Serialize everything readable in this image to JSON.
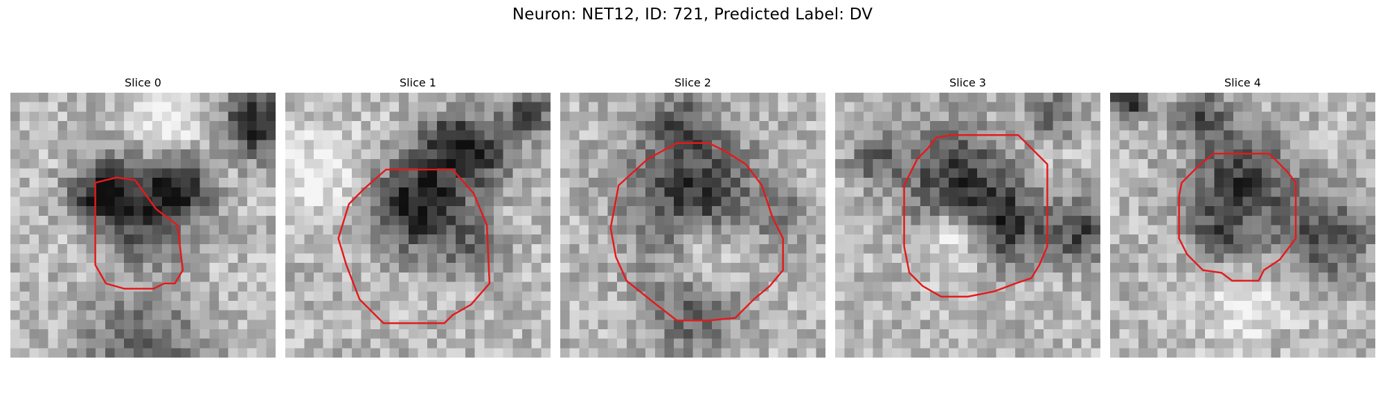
{
  "figure": {
    "title": "Neuron: NET12, ID: 721, Predicted Label: DV"
  },
  "panels": [
    {
      "title": "Slice 0",
      "seed": 11,
      "contour": [
        [
          0.32,
          0.34
        ],
        [
          0.4,
          0.32
        ],
        [
          0.47,
          0.33
        ],
        [
          0.55,
          0.44
        ],
        [
          0.63,
          0.5
        ],
        [
          0.65,
          0.67
        ],
        [
          0.62,
          0.72
        ],
        [
          0.58,
          0.72
        ],
        [
          0.54,
          0.74
        ],
        [
          0.5,
          0.74
        ],
        [
          0.43,
          0.74
        ],
        [
          0.36,
          0.72
        ],
        [
          0.32,
          0.65
        ],
        [
          0.32,
          0.55
        ],
        [
          0.32,
          0.45
        ]
      ],
      "blobs": [
        [
          0.5,
          0.44,
          0.2,
          0.55,
          0.16
        ],
        [
          0.33,
          0.37,
          0.12,
          0.5,
          0.14
        ],
        [
          0.93,
          0.12,
          0.14,
          0.6,
          0.2
        ],
        [
          0.65,
          0.35,
          0.12,
          0.45,
          0.12
        ],
        [
          0.6,
          0.1,
          0.14,
          -0.25,
          0.0
        ],
        [
          0.5,
          0.98,
          0.25,
          0.35,
          0.1
        ]
      ]
    },
    {
      "title": "Slice 1",
      "seed": 23,
      "contour": [
        [
          0.3,
          0.36
        ],
        [
          0.38,
          0.29
        ],
        [
          0.63,
          0.29
        ],
        [
          0.71,
          0.38
        ],
        [
          0.76,
          0.5
        ],
        [
          0.77,
          0.72
        ],
        [
          0.7,
          0.8
        ],
        [
          0.63,
          0.84
        ],
        [
          0.6,
          0.87
        ],
        [
          0.49,
          0.87
        ],
        [
          0.37,
          0.87
        ],
        [
          0.28,
          0.78
        ],
        [
          0.23,
          0.65
        ],
        [
          0.2,
          0.55
        ],
        [
          0.24,
          0.42
        ]
      ],
      "blobs": [
        [
          0.5,
          0.42,
          0.2,
          0.65,
          0.22
        ],
        [
          0.72,
          0.22,
          0.16,
          0.5,
          0.15
        ],
        [
          0.92,
          0.08,
          0.1,
          0.45,
          0.18
        ],
        [
          0.6,
          0.18,
          0.1,
          0.35,
          0.15
        ],
        [
          0.15,
          0.3,
          0.2,
          -0.25,
          0.0
        ],
        [
          0.72,
          0.6,
          0.12,
          0.3,
          0.12
        ]
      ]
    },
    {
      "title": "Slice 2",
      "seed": 37,
      "contour": [
        [
          0.33,
          0.25
        ],
        [
          0.44,
          0.19
        ],
        [
          0.56,
          0.19
        ],
        [
          0.62,
          0.22
        ],
        [
          0.7,
          0.27
        ],
        [
          0.76,
          0.35
        ],
        [
          0.8,
          0.47
        ],
        [
          0.84,
          0.55
        ],
        [
          0.84,
          0.67
        ],
        [
          0.79,
          0.73
        ],
        [
          0.73,
          0.78
        ],
        [
          0.68,
          0.83
        ],
        [
          0.66,
          0.85
        ],
        [
          0.56,
          0.86
        ],
        [
          0.44,
          0.86
        ],
        [
          0.35,
          0.79
        ],
        [
          0.25,
          0.71
        ],
        [
          0.21,
          0.62
        ],
        [
          0.19,
          0.51
        ],
        [
          0.22,
          0.35
        ]
      ],
      "blobs": [
        [
          0.5,
          0.38,
          0.28,
          0.5,
          0.22
        ],
        [
          0.55,
          0.63,
          0.16,
          -0.35,
          0.0
        ],
        [
          0.5,
          0.82,
          0.2,
          0.35,
          0.1
        ],
        [
          0.45,
          0.12,
          0.12,
          0.3,
          0.08
        ],
        [
          0.85,
          0.45,
          0.12,
          0.2,
          0.06
        ]
      ]
    },
    {
      "title": "Slice 3",
      "seed": 53,
      "contour": [
        [
          0.31,
          0.25
        ],
        [
          0.35,
          0.21
        ],
        [
          0.38,
          0.17
        ],
        [
          0.44,
          0.16
        ],
        [
          0.69,
          0.16
        ],
        [
          0.8,
          0.27
        ],
        [
          0.8,
          0.58
        ],
        [
          0.77,
          0.65
        ],
        [
          0.74,
          0.7
        ],
        [
          0.68,
          0.72
        ],
        [
          0.6,
          0.75
        ],
        [
          0.5,
          0.77
        ],
        [
          0.4,
          0.77
        ],
        [
          0.33,
          0.73
        ],
        [
          0.28,
          0.68
        ],
        [
          0.26,
          0.58
        ],
        [
          0.26,
          0.35
        ]
      ],
      "blobs": [
        [
          0.45,
          0.32,
          0.22,
          0.5,
          0.18
        ],
        [
          0.65,
          0.5,
          0.16,
          0.5,
          0.14
        ],
        [
          0.92,
          0.52,
          0.14,
          0.45,
          0.12
        ],
        [
          0.15,
          0.25,
          0.12,
          0.3,
          0.06
        ],
        [
          0.45,
          0.55,
          0.13,
          -0.3,
          0.0
        ],
        [
          0.82,
          0.08,
          0.1,
          0.35,
          0.15
        ]
      ]
    },
    {
      "title": "Slice 4",
      "seed": 71,
      "contour": [
        [
          0.27,
          0.34
        ],
        [
          0.33,
          0.28
        ],
        [
          0.39,
          0.23
        ],
        [
          0.6,
          0.23
        ],
        [
          0.67,
          0.3
        ],
        [
          0.7,
          0.34
        ],
        [
          0.7,
          0.55
        ],
        [
          0.64,
          0.63
        ],
        [
          0.58,
          0.67
        ],
        [
          0.56,
          0.71
        ],
        [
          0.46,
          0.71
        ],
        [
          0.42,
          0.68
        ],
        [
          0.35,
          0.67
        ],
        [
          0.29,
          0.61
        ],
        [
          0.26,
          0.55
        ],
        [
          0.26,
          0.39
        ]
      ],
      "blobs": [
        [
          0.5,
          0.35,
          0.22,
          0.5,
          0.18
        ],
        [
          0.82,
          0.55,
          0.18,
          0.45,
          0.12
        ],
        [
          0.06,
          0.03,
          0.08,
          0.6,
          0.22
        ],
        [
          0.35,
          0.08,
          0.12,
          0.35,
          0.12
        ],
        [
          0.4,
          0.55,
          0.12,
          0.3,
          0.08
        ],
        [
          0.5,
          0.82,
          0.15,
          -0.25,
          0.0
        ]
      ]
    }
  ],
  "contour_color": "#e41a1c"
}
